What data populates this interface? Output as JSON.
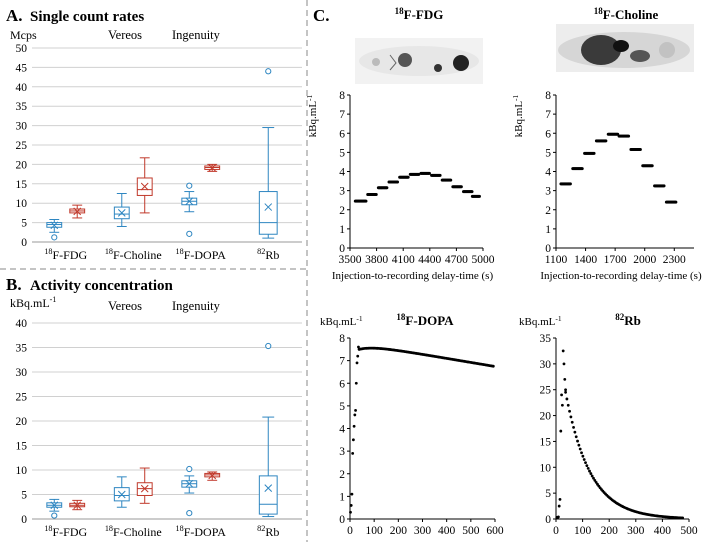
{
  "panels": {
    "A": {
      "letter": "A.",
      "title": "Single count rates",
      "unit": "Mcps"
    },
    "B": {
      "letter": "B.",
      "title": "Activity concentration",
      "unit": "kBq.mL",
      "unit_sup": "-1"
    },
    "C": {
      "letter": "C."
    }
  },
  "legend": {
    "vereos": "Vereos",
    "ingenuity": "Ingenuity"
  },
  "colors": {
    "vereos": "#2e86c1",
    "ingenuity": "#c0392b",
    "axis": "#000000",
    "grid": "#d0d0d0"
  },
  "tracers": [
    {
      "sup": "18",
      "name": "F-FDG"
    },
    {
      "sup": "18",
      "name": "F-Choline"
    },
    {
      "sup": "18",
      "name": "F-DOPA"
    },
    {
      "sup": "82",
      "name": "Rb"
    }
  ],
  "curve_xlabel": "Injection-to-recording delay-time (s)",
  "curve_unit": "kBq.mL",
  "curve_unit_sup": "-1",
  "chart_data": [
    {
      "type": "box",
      "panel": "A",
      "title": "Single count rates",
      "ylabel": "Mcps",
      "ylim": [
        0,
        50
      ],
      "yticks": [
        0,
        5,
        10,
        15,
        20,
        25,
        30,
        35,
        40,
        45,
        50
      ],
      "categories": [
        "18F-FDG",
        "18F-Choline",
        "18F-DOPA",
        "82Rb"
      ],
      "series": [
        {
          "name": "Vereos",
          "boxes": [
            {
              "min": 2.5,
              "q1": 3.8,
              "median": 4.5,
              "q3": 5.0,
              "max": 5.8,
              "mean": 4.3,
              "outliers": [
                1.2
              ]
            },
            {
              "min": 4.0,
              "q1": 6.0,
              "median": 7.2,
              "q3": 9.0,
              "max": 12.5,
              "mean": 7.5,
              "outliers": []
            },
            {
              "min": 7.8,
              "q1": 9.6,
              "median": 10.5,
              "q3": 11.3,
              "max": 13.0,
              "mean": 10.5,
              "outliers": [
                14.5,
                2.1
              ]
            },
            {
              "min": 1.0,
              "q1": 2.0,
              "median": 5.0,
              "q3": 13.0,
              "max": 29.5,
              "mean": 9.0,
              "outliers": [
                44.0
              ]
            }
          ]
        },
        {
          "name": "Ingenuity",
          "boxes": [
            {
              "min": 6.2,
              "q1": 7.5,
              "median": 8.0,
              "q3": 8.5,
              "max": 9.5,
              "mean": 7.9,
              "outliers": []
            },
            {
              "min": 7.5,
              "q1": 12.0,
              "median": 13.5,
              "q3": 16.5,
              "max": 21.7,
              "mean": 14.3,
              "outliers": []
            },
            {
              "min": 18.2,
              "q1": 18.7,
              "median": 19.2,
              "q3": 19.6,
              "max": 20.0,
              "mean": 19.1,
              "outliers": []
            }
          ]
        }
      ]
    },
    {
      "type": "box",
      "panel": "B",
      "title": "Activity concentration",
      "ylabel": "kBq.mL-1",
      "ylim": [
        0,
        40
      ],
      "yticks": [
        0,
        5,
        10,
        15,
        20,
        25,
        30,
        35,
        40
      ],
      "categories": [
        "18F-FDG",
        "18F-Choline",
        "18F-DOPA",
        "82Rb"
      ],
      "series": [
        {
          "name": "Vereos",
          "boxes": [
            {
              "min": 1.6,
              "q1": 2.4,
              "median": 2.8,
              "q3": 3.3,
              "max": 4.0,
              "mean": 2.8,
              "outliers": [
                0.7
              ]
            },
            {
              "min": 2.4,
              "q1": 3.7,
              "median": 4.8,
              "q3": 6.4,
              "max": 8.6,
              "mean": 5.0,
              "outliers": []
            },
            {
              "min": 5.3,
              "q1": 6.5,
              "median": 7.2,
              "q3": 7.8,
              "max": 8.8,
              "mean": 7.2,
              "outliers": [
                10.2,
                1.2
              ]
            },
            {
              "min": 0.5,
              "q1": 1.0,
              "median": 3.0,
              "q3": 8.8,
              "max": 20.8,
              "mean": 6.3,
              "outliers": [
                35.3
              ]
            }
          ]
        },
        {
          "name": "Ingenuity",
          "boxes": [
            {
              "min": 1.9,
              "q1": 2.5,
              "median": 2.8,
              "q3": 3.2,
              "max": 3.8,
              "mean": 2.8,
              "outliers": []
            },
            {
              "min": 3.2,
              "q1": 4.8,
              "median": 6.2,
              "q3": 7.4,
              "max": 10.4,
              "mean": 6.2,
              "outliers": []
            },
            {
              "min": 7.9,
              "q1": 8.6,
              "median": 9.0,
              "q3": 9.3,
              "max": 9.6,
              "mean": 8.9,
              "outliers": []
            }
          ]
        }
      ]
    },
    {
      "type": "scatter",
      "panel": "C",
      "title": "18F-FDG",
      "xlabel": "Injection-to-recording delay-time (s)",
      "ylabel": "kBq.mL-1",
      "xlim": [
        3500,
        5000
      ],
      "xticks": [
        3500,
        3800,
        4100,
        4400,
        4700,
        5000
      ],
      "ylim": [
        0,
        8
      ],
      "yticks": [
        0,
        1,
        2,
        3,
        4,
        5,
        6,
        7,
        8
      ],
      "segments": [
        {
          "x0": 3560,
          "x1": 3680,
          "y": 2.45
        },
        {
          "x0": 3700,
          "x1": 3800,
          "y": 2.8
        },
        {
          "x0": 3820,
          "x1": 3920,
          "y": 3.15
        },
        {
          "x0": 3940,
          "x1": 4040,
          "y": 3.45
        },
        {
          "x0": 4060,
          "x1": 4160,
          "y": 3.7
        },
        {
          "x0": 4180,
          "x1": 4280,
          "y": 3.85
        },
        {
          "x0": 4300,
          "x1": 4400,
          "y": 3.9
        },
        {
          "x0": 4420,
          "x1": 4520,
          "y": 3.8
        },
        {
          "x0": 4540,
          "x1": 4640,
          "y": 3.55
        },
        {
          "x0": 4660,
          "x1": 4760,
          "y": 3.2
        },
        {
          "x0": 4780,
          "x1": 4880,
          "y": 2.95
        },
        {
          "x0": 4880,
          "x1": 4960,
          "y": 2.7
        }
      ]
    },
    {
      "type": "scatter",
      "panel": "C",
      "title": "18F-Choline",
      "xlabel": "Injection-to-recording delay-time (s)",
      "ylabel": "kBq.mL-1",
      "xlim": [
        1100,
        2500
      ],
      "xticks": [
        1100,
        1400,
        1700,
        2000,
        2300
      ],
      "ylim": [
        0,
        8
      ],
      "yticks": [
        0,
        1,
        2,
        3,
        4,
        5,
        6,
        7,
        8
      ],
      "segments": [
        {
          "x0": 1150,
          "x1": 1250,
          "y": 3.35
        },
        {
          "x0": 1270,
          "x1": 1370,
          "y": 4.15
        },
        {
          "x0": 1390,
          "x1": 1490,
          "y": 4.95
        },
        {
          "x0": 1510,
          "x1": 1610,
          "y": 5.6
        },
        {
          "x0": 1630,
          "x1": 1730,
          "y": 5.95
        },
        {
          "x0": 1740,
          "x1": 1840,
          "y": 5.85
        },
        {
          "x0": 1860,
          "x1": 1960,
          "y": 5.15
        },
        {
          "x0": 1980,
          "x1": 2080,
          "y": 4.3
        },
        {
          "x0": 2100,
          "x1": 2200,
          "y": 3.25
        },
        {
          "x0": 2220,
          "x1": 2320,
          "y": 2.4
        }
      ]
    },
    {
      "type": "scatter",
      "panel": "C",
      "title": "18F-DOPA",
      "xlabel": "Injection-to-recording delay-time (s)",
      "ylabel": "kBq.mL-1",
      "xlim": [
        0,
        600
      ],
      "xticks": [
        0,
        100,
        200,
        300,
        400,
        500,
        600
      ],
      "ylim": [
        0,
        8
      ],
      "yticks": [
        0,
        1,
        2,
        3,
        4,
        5,
        6,
        7,
        8
      ],
      "rise": [
        [
          2,
          0.3
        ],
        [
          5,
          0.6
        ],
        [
          8,
          1.1
        ],
        [
          11,
          2.9
        ],
        [
          14,
          3.5
        ],
        [
          17,
          4.1
        ],
        [
          20,
          4.6
        ],
        [
          23,
          4.8
        ],
        [
          26,
          6.0
        ],
        [
          29,
          6.9
        ],
        [
          32,
          7.2
        ],
        [
          35,
          7.6
        ],
        [
          38,
          7.5
        ]
      ],
      "decay": {
        "x0": 38,
        "x1": 595,
        "step": 5,
        "y0": 7.5,
        "y1": 6.5
      }
    },
    {
      "type": "scatter",
      "panel": "C",
      "title": "82Rb",
      "xlabel": "Injection-to-recording delay-time (s)",
      "ylabel": "kBq.mL-1",
      "xlim": [
        0,
        500
      ],
      "xticks": [
        0,
        100,
        200,
        300,
        400,
        500
      ],
      "ylim": [
        0,
        35
      ],
      "yticks": [
        0,
        5,
        10,
        15,
        20,
        25,
        30,
        35
      ],
      "rise": [
        [
          3,
          0.3
        ],
        [
          6,
          0.3
        ],
        [
          9,
          0.4
        ],
        [
          12,
          2.5
        ],
        [
          15,
          3.8
        ],
        [
          18,
          17.0
        ],
        [
          21,
          24.0
        ],
        [
          24,
          22.0
        ],
        [
          27,
          32.5
        ],
        [
          30,
          30.0
        ],
        [
          33,
          27.0
        ],
        [
          36,
          25.0
        ]
      ],
      "decay": {
        "x0": 36,
        "x1": 480,
        "step": 5,
        "y0": 24.5,
        "k": 0.0108
      }
    }
  ]
}
